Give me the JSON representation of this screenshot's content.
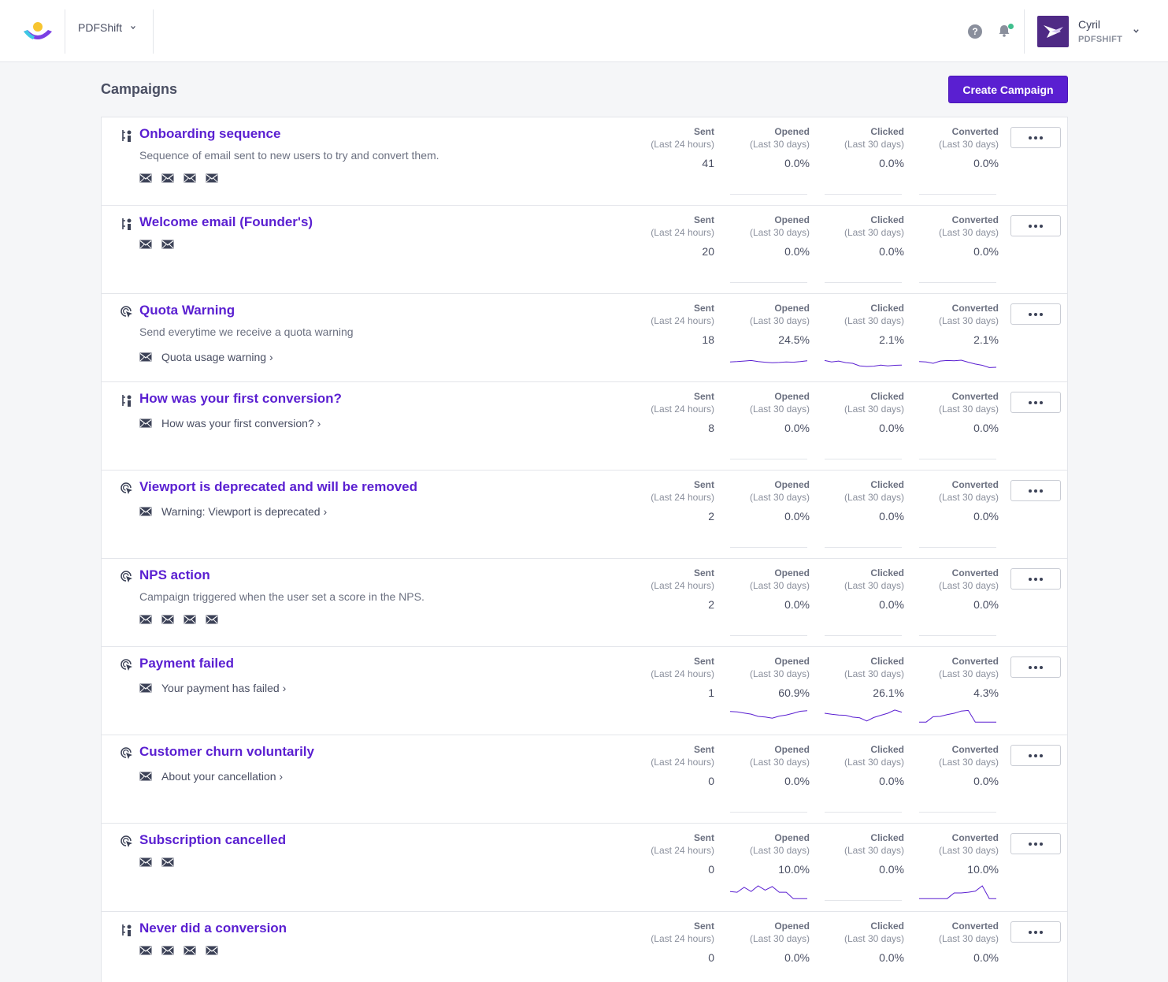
{
  "header": {
    "app_name": "PDFShift",
    "user_name": "Cyril",
    "user_org": "PDFSHIFT",
    "help_icon": "question-circle-icon",
    "notification_icon": "bell-icon",
    "accent": "#5a1fd1"
  },
  "page": {
    "title": "Campaigns",
    "create_label": "Create Campaign"
  },
  "stat_labels": {
    "sent": "Sent",
    "sent_period": "(Last 24 hours)",
    "opened": "Opened",
    "clicked": "Clicked",
    "converted": "Converted",
    "period": "(Last 30 days)"
  },
  "campaigns": [
    {
      "title": "Onboarding sequence",
      "type": "sequence",
      "description": "Sequence of email sent to new users to try and convert them.",
      "email_count": 4,
      "email_label": "",
      "sent": "41",
      "opened": "0.0%",
      "clicked": "0.0%",
      "converted": "0.0%",
      "spark": {
        "opened": [],
        "clicked": [],
        "converted": []
      }
    },
    {
      "title": "Welcome email (Founder's)",
      "type": "sequence",
      "description": "",
      "email_count": 2,
      "email_label": "",
      "sent": "20",
      "opened": "0.0%",
      "clicked": "0.0%",
      "converted": "0.0%",
      "spark": {
        "opened": [],
        "clicked": [],
        "converted": []
      }
    },
    {
      "title": "Quota Warning",
      "type": "trigger",
      "description": "Send everytime we receive a quota warning",
      "email_count": 1,
      "email_label": "Quota usage warning ›",
      "sent": "18",
      "opened": "24.5%",
      "clicked": "2.1%",
      "converted": "2.1%",
      "spark": {
        "opened": [
          0.6,
          0.62,
          0.66,
          0.7,
          0.62,
          0.58,
          0.54,
          0.56,
          0.6,
          0.58,
          0.62,
          0.68
        ],
        "clicked": [
          0.7,
          0.6,
          0.66,
          0.55,
          0.5,
          0.32,
          0.28,
          0.3,
          0.38,
          0.32,
          0.36,
          0.38
        ],
        "converted": [
          0.62,
          0.6,
          0.5,
          0.66,
          0.7,
          0.68,
          0.72,
          0.58,
          0.45,
          0.36,
          0.2,
          0.22
        ]
      }
    },
    {
      "title": "How was your first conversion?",
      "type": "sequence",
      "description": "",
      "email_count": 1,
      "email_label": "How was your first conversion? ›",
      "sent": "8",
      "opened": "0.0%",
      "clicked": "0.0%",
      "converted": "0.0%",
      "spark": {
        "opened": [],
        "clicked": [],
        "converted": []
      }
    },
    {
      "title": "Viewport is deprecated and will be removed",
      "type": "trigger",
      "description": "",
      "email_count": 1,
      "email_label": "Warning: Viewport is deprecated ›",
      "sent": "2",
      "opened": "0.0%",
      "clicked": "0.0%",
      "converted": "0.0%",
      "spark": {
        "opened": [],
        "clicked": [],
        "converted": []
      }
    },
    {
      "title": "NPS action",
      "type": "trigger",
      "description": "Campaign triggered when the user set a score in the NPS.",
      "email_count": 4,
      "email_label": "",
      "sent": "2",
      "opened": "0.0%",
      "clicked": "0.0%",
      "converted": "0.0%",
      "spark": {
        "opened": [],
        "clicked": [],
        "converted": []
      }
    },
    {
      "title": "Payment failed",
      "type": "trigger",
      "description": "",
      "email_count": 1,
      "email_label": "Your payment has failed ›",
      "sent": "1",
      "opened": "60.9%",
      "clicked": "26.1%",
      "converted": "4.3%",
      "spark": {
        "opened": [
          0.85,
          0.82,
          0.74,
          0.66,
          0.5,
          0.46,
          0.38,
          0.52,
          0.6,
          0.72,
          0.86,
          0.9
        ],
        "clicked": [
          0.72,
          0.65,
          0.6,
          0.58,
          0.45,
          0.4,
          0.18,
          0.42,
          0.58,
          0.72,
          0.95,
          0.8
        ],
        "converted": [
          0.1,
          0.1,
          0.48,
          0.5,
          0.62,
          0.72,
          0.88,
          0.92,
          0.1,
          0.1,
          0.1,
          0.1
        ]
      }
    },
    {
      "title": "Customer churn voluntarily",
      "type": "trigger",
      "description": "",
      "email_count": 1,
      "email_label": "About your cancellation ›",
      "sent": "0",
      "opened": "0.0%",
      "clicked": "0.0%",
      "converted": "0.0%",
      "spark": {
        "opened": [],
        "clicked": [],
        "converted": []
      }
    },
    {
      "title": "Subscription cancelled",
      "type": "trigger",
      "description": "",
      "email_count": 2,
      "email_label": "",
      "sent": "0",
      "opened": "10.0%",
      "clicked": "0.0%",
      "converted": "10.0%",
      "spark": {
        "opened": [
          0.6,
          0.55,
          0.9,
          0.6,
          1.0,
          0.7,
          0.95,
          0.55,
          0.55,
          0.1,
          0.1,
          0.1
        ],
        "clicked": [],
        "converted": [
          0.1,
          0.1,
          0.1,
          0.1,
          0.1,
          0.5,
          0.5,
          0.55,
          0.62,
          1.0,
          0.1,
          0.1
        ]
      }
    },
    {
      "title": "Never did a conversion",
      "type": "sequence",
      "description": "",
      "email_count": 4,
      "email_label": "",
      "sent": "0",
      "opened": "0.0%",
      "clicked": "0.0%",
      "converted": "0.0%",
      "spark": {
        "opened": [],
        "clicked": [],
        "converted": []
      }
    }
  ]
}
